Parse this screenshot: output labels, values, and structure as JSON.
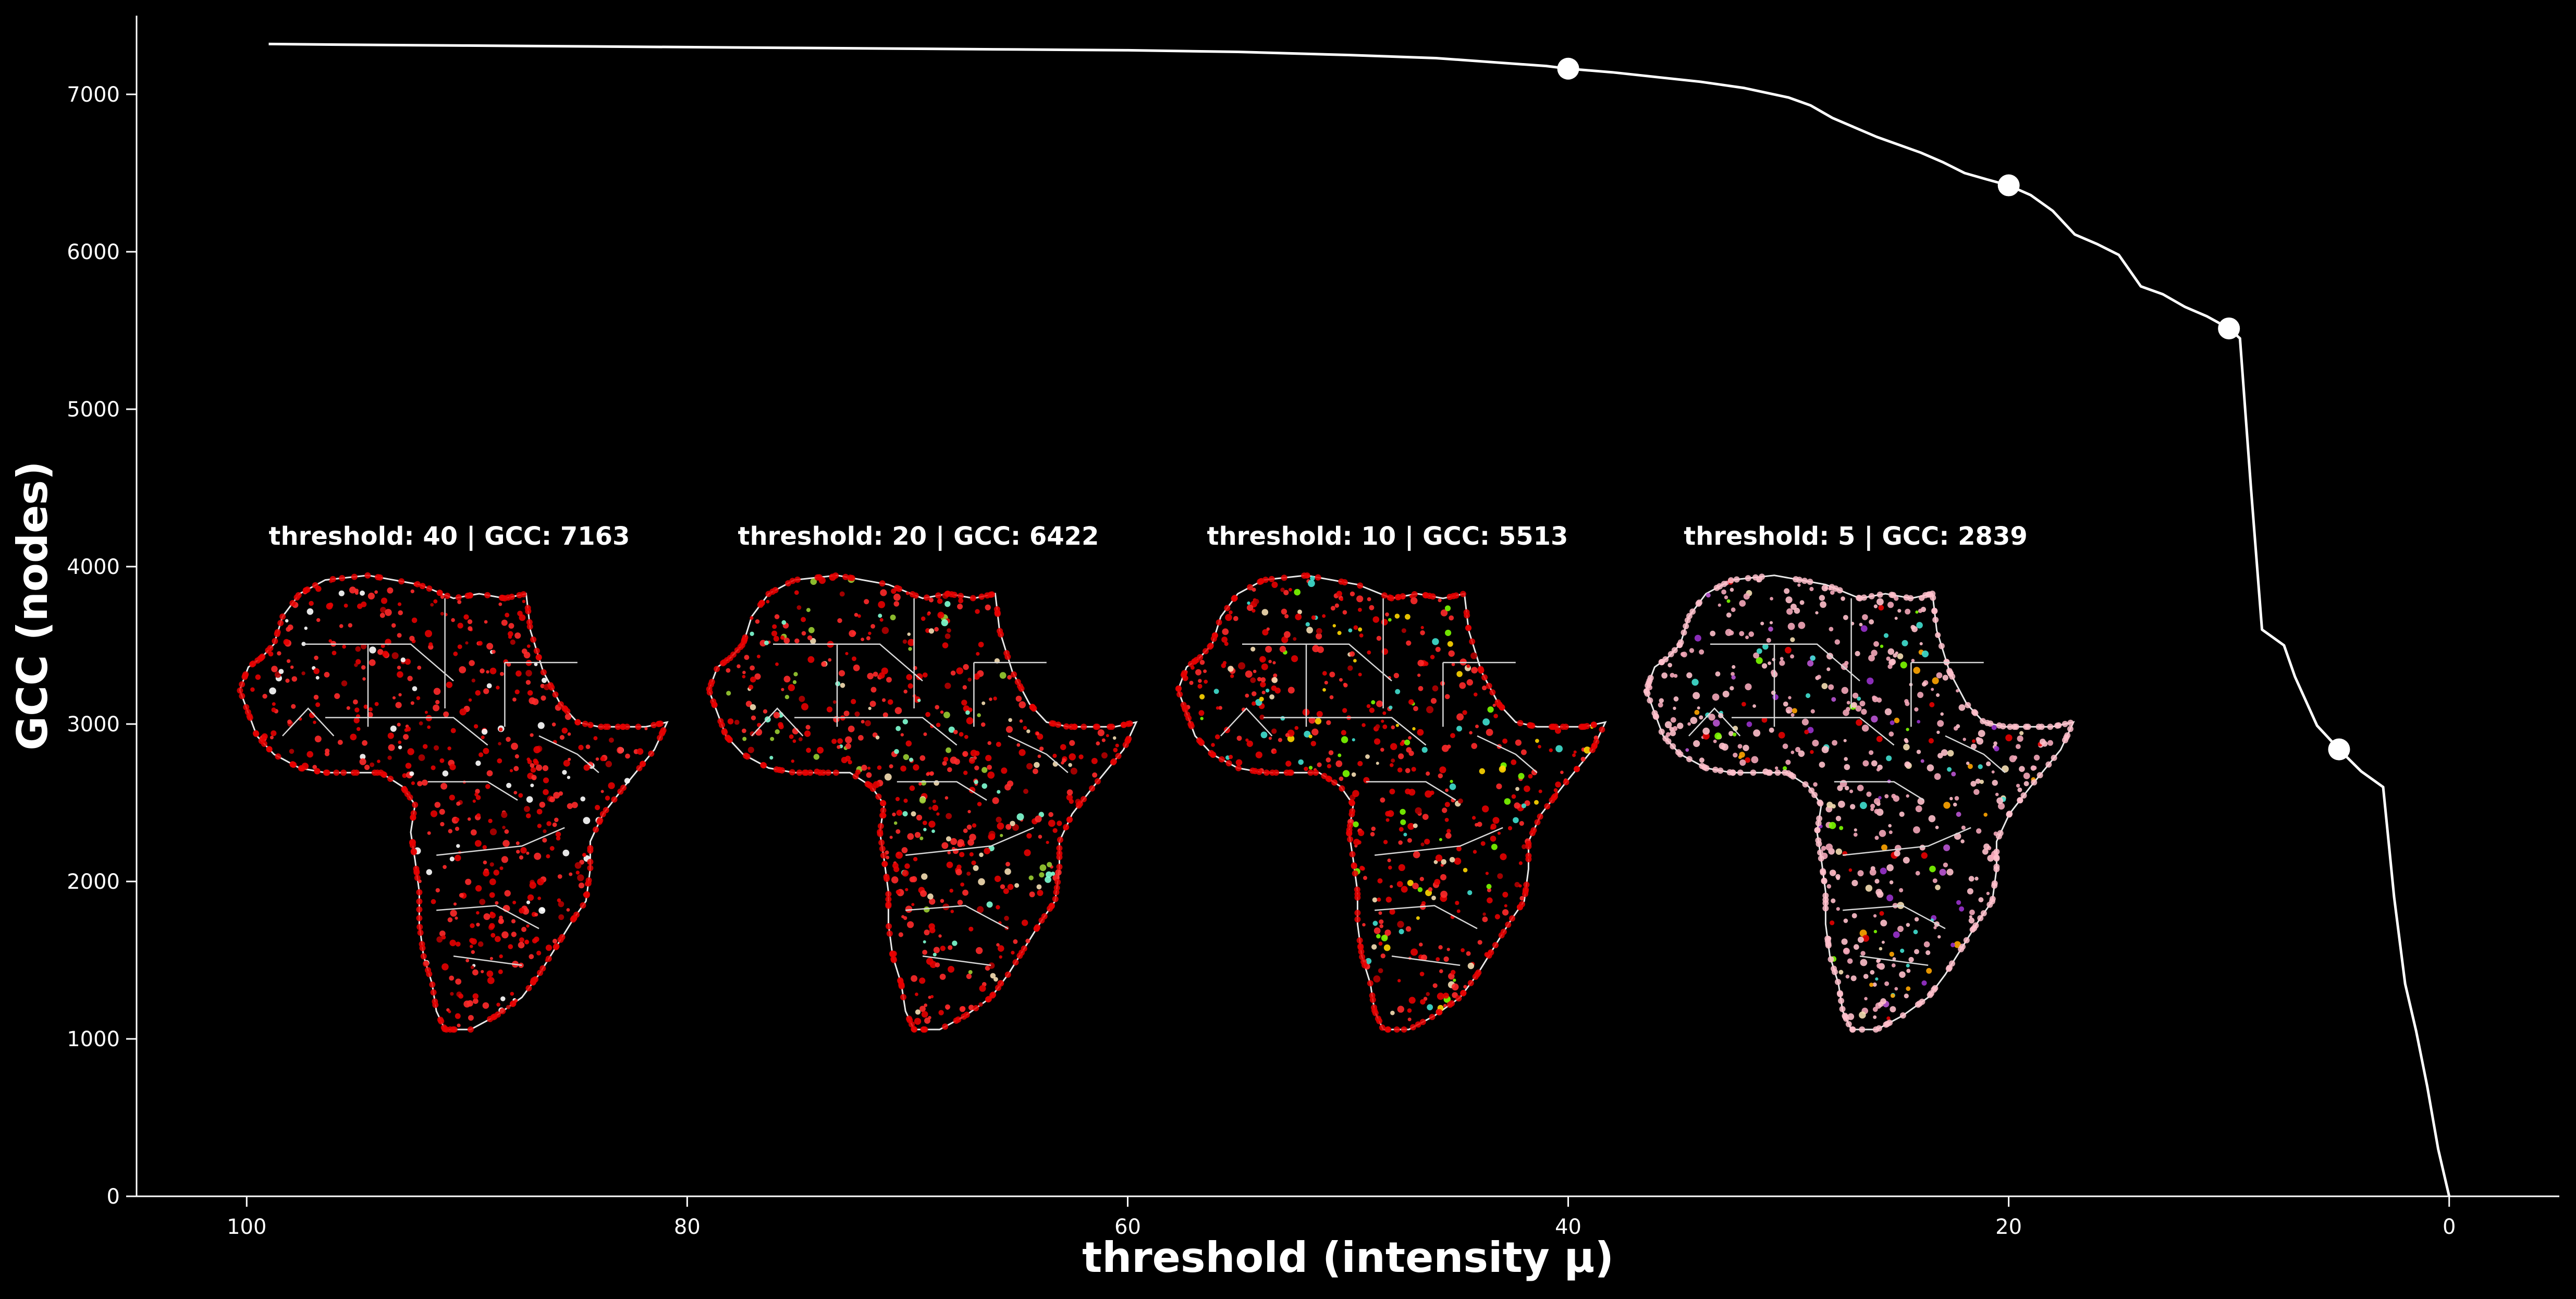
{
  "chart_data": {
    "type": "line",
    "xlabel": "threshold (intensity μ)",
    "ylabel": "GCC (nodes)",
    "xlim": [
      105,
      -5
    ],
    "ylim": [
      0,
      7500
    ],
    "x_ticks": [
      100,
      80,
      60,
      40,
      20,
      0
    ],
    "y_ticks": [
      0,
      1000,
      2000,
      3000,
      4000,
      5000,
      6000,
      7000
    ],
    "grid": false,
    "series": [
      {
        "x": [
          99,
          95,
          90,
          85,
          80,
          75,
          70,
          65,
          60,
          55,
          50,
          46,
          43,
          41,
          40,
          38,
          36,
          34,
          32,
          30,
          29,
          28,
          27,
          26,
          25,
          24,
          23,
          22,
          21,
          20,
          19,
          18,
          17,
          16,
          15,
          14,
          13,
          12,
          11,
          10,
          9.5,
          9,
          8.5,
          8,
          7.5,
          7,
          6,
          5,
          4,
          3,
          2.5,
          2,
          1.5,
          1,
          0.5,
          0
        ],
        "values": [
          7320,
          7315,
          7310,
          7305,
          7300,
          7295,
          7290,
          7285,
          7280,
          7270,
          7250,
          7230,
          7200,
          7180,
          7163,
          7140,
          7110,
          7080,
          7040,
          6980,
          6930,
          6850,
          6790,
          6730,
          6680,
          6630,
          6570,
          6500,
          6460,
          6422,
          6360,
          6260,
          6110,
          6050,
          5980,
          5780,
          5730,
          5650,
          5590,
          5513,
          5450,
          4500,
          3600,
          3550,
          3500,
          3300,
          2990,
          2839,
          2700,
          2600,
          1900,
          1350,
          1050,
          700,
          300,
          0
        ]
      }
    ],
    "highlight_points": [
      {
        "x": 40,
        "y": 7163
      },
      {
        "x": 20,
        "y": 6422
      },
      {
        "x": 10,
        "y": 5513
      },
      {
        "x": 5,
        "y": 2839
      }
    ],
    "annotations": [
      "threshold: 40 | GCC: 7163",
      "threshold: 20 | GCC: 6422",
      "threshold: 10 | GCC: 5513",
      "threshold: 5 | GCC: 2839"
    ],
    "inset_maps": [
      {
        "label": "threshold: 40 | GCC: 7163",
        "dot_colors": [
          "#e60000",
          "#ff2a2a",
          "#b30000",
          "#ffffff"
        ]
      },
      {
        "label": "threshold: 20 | GCC: 6422",
        "dot_colors": [
          "#e60000",
          "#ff2a2a",
          "#b30000",
          "#f5deb3",
          "#7fffd4",
          "#9acd32"
        ]
      },
      {
        "label": "threshold: 10 | GCC: 5513",
        "dot_colors": [
          "#e60000",
          "#ff2a2a",
          "#b30000",
          "#f5deb3",
          "#7cfc00",
          "#40e0d0",
          "#ffd700"
        ]
      },
      {
        "label": "threshold: 5 | GCC: 2839",
        "dot_colors": [
          "#ffc0cb",
          "#f4a7b9",
          "#9932cc",
          "#ba55d3",
          "#f5deb3",
          "#40e0d0",
          "#ffa500",
          "#7cfc00",
          "#e60000"
        ]
      }
    ],
    "colors": {
      "background": "#000000",
      "line": "#ffffff",
      "axes": "#ffffff",
      "map_border": "#ffffff"
    }
  }
}
